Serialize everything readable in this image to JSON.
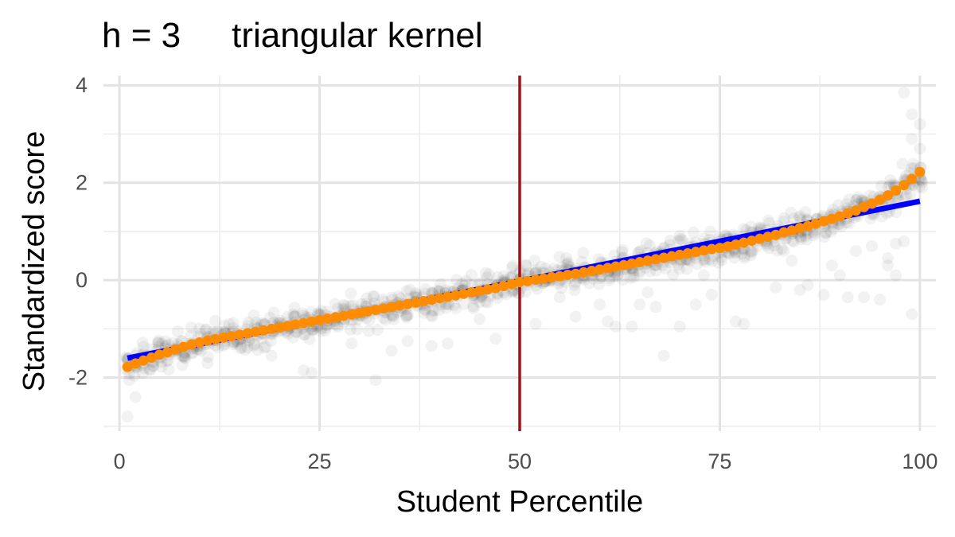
{
  "chart_data": {
    "type": "scatter",
    "title": "h = 3",
    "subtitle": "triangular kernel",
    "xlabel": "Student Percentile",
    "ylabel": "Standardized score",
    "xlim": [
      -2,
      102
    ],
    "ylim": [
      -3.1,
      4.2
    ],
    "x_ticks": [
      0,
      25,
      50,
      75,
      100
    ],
    "y_ticks": [
      -2,
      0,
      2,
      4
    ],
    "x_tick_labels": [
      "0",
      "25",
      "50",
      "75",
      "100"
    ],
    "y_tick_labels": [
      "-2",
      "0",
      "2",
      "4"
    ],
    "grid": true,
    "cutoff_line": {
      "x": 50,
      "color": "#a50f15"
    },
    "series": [
      {
        "style": "scatter-raw",
        "color": "#000000",
        "opacity": 0.05,
        "description_note": "",
        "points_per_percentile": 10,
        "outliers": [
          [
            1,
            -2.8
          ],
          [
            2,
            -2.4
          ],
          [
            23,
            -1.85
          ],
          [
            24,
            -1.9
          ],
          [
            32,
            -2.05
          ],
          [
            34,
            -1.45
          ],
          [
            39,
            -1.35
          ],
          [
            47,
            -1.2
          ],
          [
            52,
            -0.9
          ],
          [
            57,
            -0.75
          ],
          [
            61,
            -0.85
          ],
          [
            62,
            -0.95
          ],
          [
            64,
            -0.95
          ],
          [
            65,
            -0.5
          ],
          [
            66,
            -0.25
          ],
          [
            67,
            -0.55
          ],
          [
            68,
            -1.55
          ],
          [
            70,
            -0.95
          ],
          [
            72,
            -0.5
          ],
          [
            74,
            -0.3
          ],
          [
            77,
            -0.85
          ],
          [
            78,
            -0.9
          ],
          [
            82,
            -0.15
          ],
          [
            84,
            0.4
          ],
          [
            85,
            -0.2
          ],
          [
            86,
            -0.1
          ],
          [
            88,
            -0.3
          ],
          [
            90,
            0.1
          ],
          [
            91,
            -0.35
          ],
          [
            93,
            -0.35
          ],
          [
            95,
            -0.4
          ],
          [
            96,
            0.3
          ],
          [
            97,
            0.75
          ],
          [
            98,
            0.8
          ],
          [
            99,
            -0.7
          ],
          [
            98,
            3.85
          ],
          [
            99,
            3.4
          ],
          [
            100,
            3.2
          ],
          [
            99,
            2.9
          ],
          [
            100,
            2.7
          ],
          [
            97,
            0.1
          ],
          [
            92,
            0.6
          ],
          [
            94,
            0.7
          ],
          [
            96,
            0.45
          ],
          [
            89,
            0.3
          ],
          [
            73,
            0.1
          ],
          [
            60,
            -0.5
          ],
          [
            55,
            -0.35
          ],
          [
            45,
            -0.8
          ],
          [
            41,
            -1.3
          ],
          [
            36,
            -1.25
          ],
          [
            29,
            -1.3
          ],
          [
            19,
            -1.55
          ],
          [
            11,
            -1.7
          ]
        ]
      },
      {
        "style": "line",
        "color": "#0000ff",
        "points": [
          [
            1,
            -1.6
          ],
          [
            50,
            -0.02
          ],
          [
            100,
            1.62
          ]
        ]
      },
      {
        "style": "points",
        "color": "#ff8c00",
        "x": [
          1,
          2,
          3,
          4,
          5,
          6,
          7,
          8,
          9,
          10,
          11,
          12,
          13,
          14,
          15,
          16,
          17,
          18,
          19,
          20,
          21,
          22,
          23,
          24,
          25,
          26,
          27,
          28,
          29,
          30,
          31,
          32,
          33,
          34,
          35,
          36,
          37,
          38,
          39,
          40,
          41,
          42,
          43,
          44,
          45,
          46,
          47,
          48,
          49,
          50,
          51,
          52,
          53,
          54,
          55,
          56,
          57,
          58,
          59,
          60,
          61,
          62,
          63,
          64,
          65,
          66,
          67,
          68,
          69,
          70,
          71,
          72,
          73,
          74,
          75,
          76,
          77,
          78,
          79,
          80,
          81,
          82,
          83,
          84,
          85,
          86,
          87,
          88,
          89,
          90,
          91,
          92,
          93,
          94,
          95,
          96,
          97,
          98,
          99,
          100
        ],
        "y": [
          -1.78,
          -1.71,
          -1.65,
          -1.59,
          -1.53,
          -1.48,
          -1.42,
          -1.37,
          -1.32,
          -1.28,
          -1.24,
          -1.21,
          -1.18,
          -1.15,
          -1.12,
          -1.09,
          -1.06,
          -1.03,
          -1.0,
          -0.97,
          -0.94,
          -0.91,
          -0.88,
          -0.85,
          -0.82,
          -0.79,
          -0.76,
          -0.73,
          -0.7,
          -0.67,
          -0.64,
          -0.61,
          -0.58,
          -0.55,
          -0.52,
          -0.49,
          -0.46,
          -0.43,
          -0.4,
          -0.37,
          -0.34,
          -0.31,
          -0.28,
          -0.25,
          -0.22,
          -0.19,
          -0.16,
          -0.12,
          -0.08,
          -0.04,
          -0.02,
          0.01,
          0.03,
          0.06,
          0.08,
          0.11,
          0.13,
          0.16,
          0.19,
          0.22,
          0.25,
          0.28,
          0.31,
          0.34,
          0.37,
          0.4,
          0.43,
          0.46,
          0.49,
          0.52,
          0.55,
          0.58,
          0.61,
          0.64,
          0.66,
          0.69,
          0.73,
          0.77,
          0.81,
          0.85,
          0.89,
          0.93,
          0.98,
          1.02,
          1.07,
          1.11,
          1.16,
          1.21,
          1.26,
          1.31,
          1.37,
          1.43,
          1.5,
          1.57,
          1.65,
          1.74,
          1.84,
          1.95,
          2.08,
          2.22
        ]
      }
    ]
  }
}
